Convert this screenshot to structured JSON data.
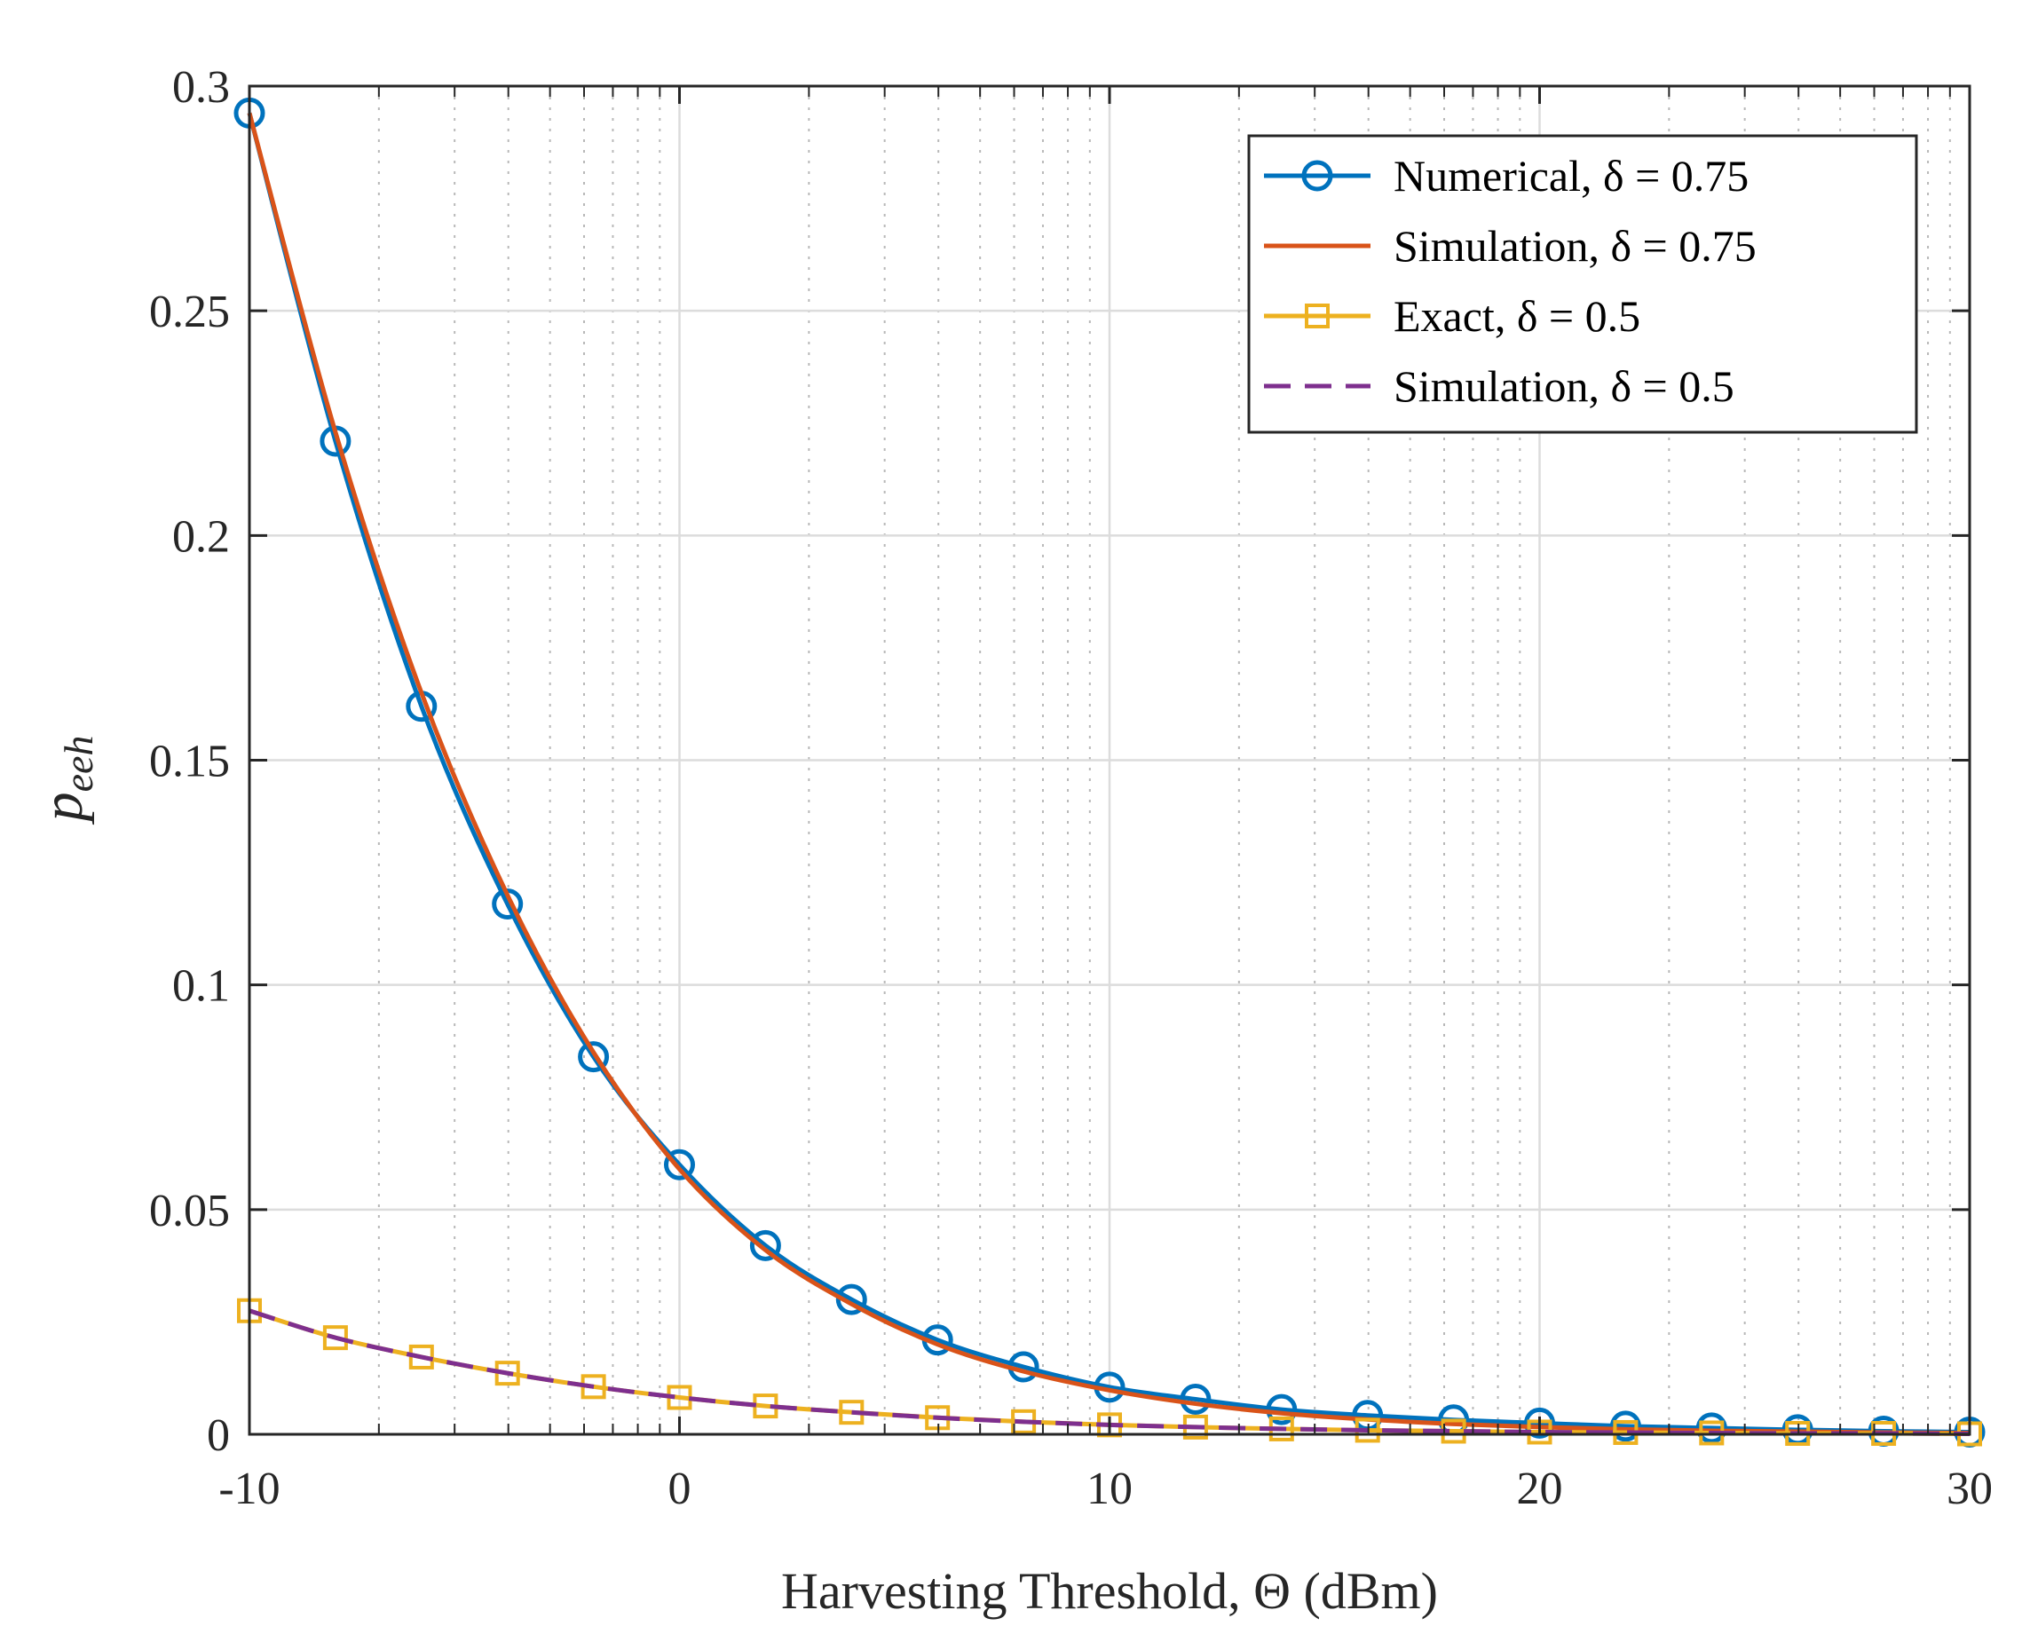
{
  "chart_data": {
    "type": "line",
    "xlabel": "Harvesting Threshold,  Θ (dBm)",
    "ylabel": {
      "main": "p",
      "sub": "eeh"
    },
    "xlim": [
      -10,
      30
    ],
    "ylim": [
      0,
      0.3
    ],
    "xticks": [
      -10,
      0,
      10,
      20,
      30
    ],
    "xtick_labels": [
      "-10",
      "0",
      "10",
      "20",
      "30"
    ],
    "yticks": [
      0,
      0.05,
      0.1,
      0.15,
      0.2,
      0.25,
      0.3
    ],
    "ytick_labels": [
      "0",
      "0.05",
      "0.1",
      "0.15",
      "0.2",
      "0.25",
      "0.3"
    ],
    "grid": true,
    "minor_grid": true,
    "legend_position": "top-right",
    "series": [
      {
        "name": "Numerical, δ = 0.75",
        "color": "#0072BD",
        "line": "solid",
        "marker": "circle",
        "x": [
          -10,
          -8,
          -6,
          -4,
          -2,
          0,
          2,
          4,
          6,
          8,
          10,
          12,
          14,
          16,
          18,
          20,
          22,
          24,
          26,
          28,
          30
        ],
        "y": [
          0.294,
          0.221,
          0.162,
          0.118,
          0.084,
          0.06,
          0.042,
          0.03,
          0.021,
          0.015,
          0.0105,
          0.0078,
          0.0055,
          0.0042,
          0.0032,
          0.0025,
          0.0018,
          0.0014,
          0.001,
          0.0007,
          0.0005
        ]
      },
      {
        "name": "Simulation, δ = 0.75",
        "color": "#D95319",
        "line": "solid",
        "marker": "none",
        "x": [
          -10,
          -8,
          -6,
          -4,
          -2,
          0,
          2,
          4,
          6,
          8,
          10,
          12,
          14,
          16,
          18,
          20,
          22,
          24,
          26,
          28,
          30
        ],
        "y": [
          0.294,
          0.223,
          0.165,
          0.12,
          0.085,
          0.059,
          0.041,
          0.029,
          0.02,
          0.014,
          0.0098,
          0.0068,
          0.0047,
          0.0033,
          0.0023,
          0.0016,
          0.0011,
          0.0008,
          0.0006,
          0.0004,
          0.0003
        ]
      },
      {
        "name": "Exact, δ = 0.5",
        "color": "#EDB120",
        "line": "solid",
        "marker": "square",
        "x": [
          -10,
          -8,
          -6,
          -4,
          -2,
          0,
          2,
          4,
          6,
          8,
          10,
          12,
          14,
          16,
          18,
          20,
          22,
          24,
          26,
          28,
          30
        ],
        "y": [
          0.0275,
          0.0215,
          0.0172,
          0.0136,
          0.0106,
          0.0082,
          0.0063,
          0.0049,
          0.0037,
          0.0028,
          0.0021,
          0.0016,
          0.0012,
          0.0009,
          0.0007,
          0.0005,
          0.0004,
          0.0003,
          0.0002,
          0.0002,
          0.0001
        ]
      },
      {
        "name": "Simulation, δ = 0.5",
        "color": "#7E2F8E",
        "line": "dashed",
        "marker": "none",
        "x": [
          -10,
          -8,
          -6,
          -4,
          -2,
          0,
          2,
          4,
          6,
          8,
          10,
          12,
          14,
          16,
          18,
          20,
          22,
          24,
          26,
          28,
          30
        ],
        "y": [
          0.0275,
          0.0215,
          0.0172,
          0.0136,
          0.0106,
          0.0082,
          0.0063,
          0.0049,
          0.0037,
          0.0028,
          0.0021,
          0.0016,
          0.0012,
          0.0009,
          0.0007,
          0.0005,
          0.0004,
          0.0003,
          0.0002,
          0.0002,
          0.0001
        ]
      }
    ]
  }
}
